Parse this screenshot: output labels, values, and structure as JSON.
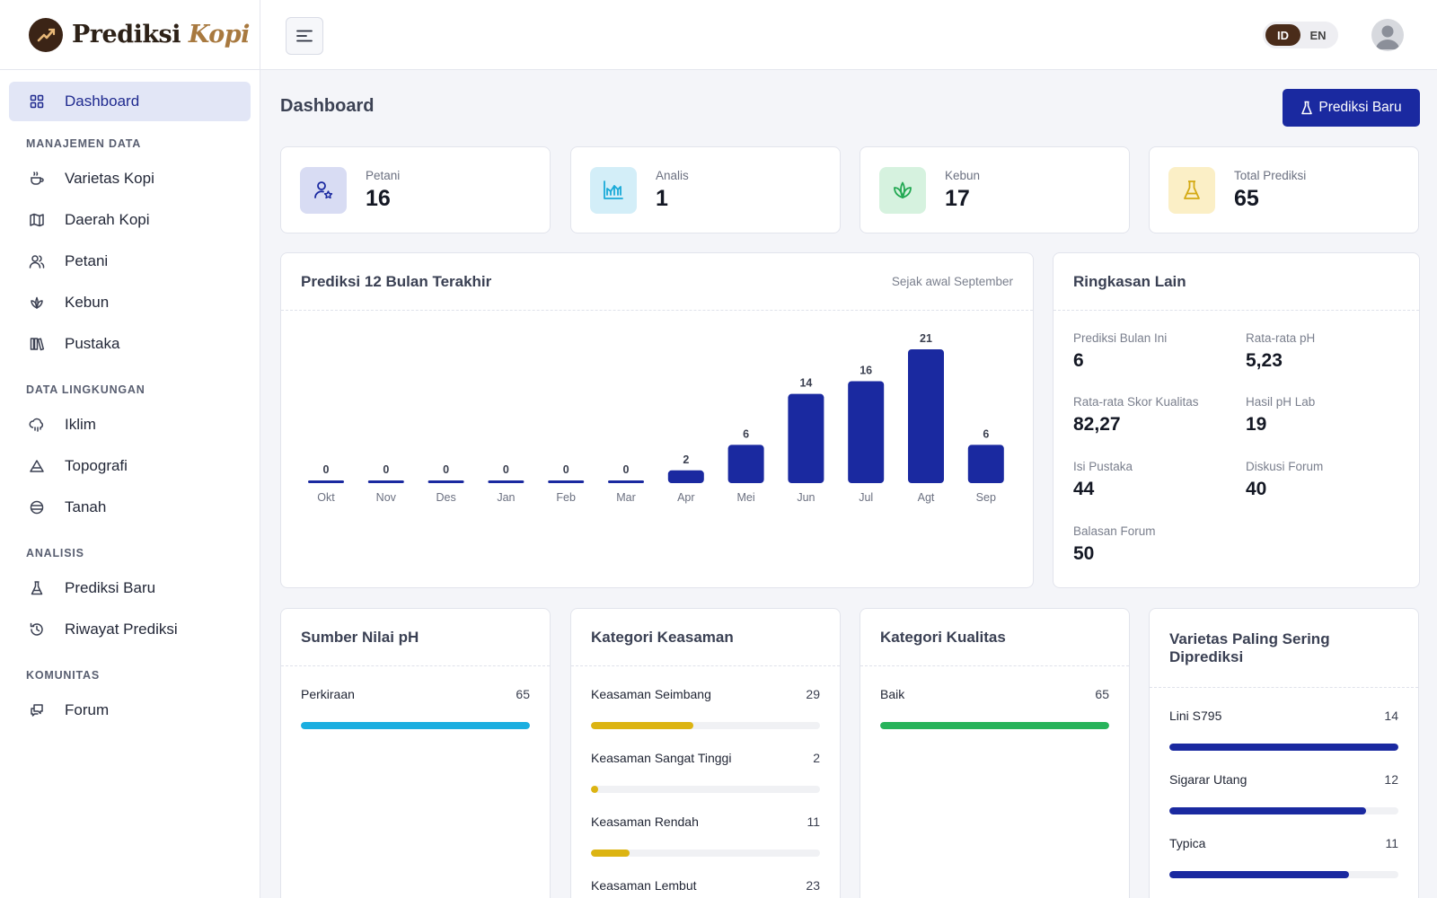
{
  "brand": {
    "name_main": "Prediksi",
    "name_accent": "Kopi"
  },
  "sidebar": {
    "dashboard": "Dashboard",
    "sections": [
      {
        "title": "MANAJEMEN DATA",
        "items": [
          "Varietas Kopi",
          "Daerah Kopi",
          "Petani",
          "Kebun",
          "Pustaka"
        ]
      },
      {
        "title": "DATA LINGKUNGAN",
        "items": [
          "Iklim",
          "Topografi",
          "Tanah"
        ]
      },
      {
        "title": "ANALISIS",
        "items": [
          "Prediksi Baru",
          "Riwayat Prediksi"
        ]
      },
      {
        "title": "KOMUNITAS",
        "items": [
          "Forum"
        ]
      }
    ]
  },
  "topbar": {
    "lang_id": "ID",
    "lang_en": "EN",
    "active_lang": "ID"
  },
  "page": {
    "title": "Dashboard",
    "new_button": "Prediksi Baru"
  },
  "stats": [
    {
      "label": "Petani",
      "value": "16",
      "icon": "user-star-icon",
      "bg": "#d8dcf3",
      "color": "#1a29a0"
    },
    {
      "label": "Analis",
      "value": "1",
      "icon": "chart-area-icon",
      "bg": "#d3eef8",
      "color": "#1aaad8"
    },
    {
      "label": "Kebun",
      "value": "17",
      "icon": "sprout-icon",
      "bg": "#d6f2df",
      "color": "#22a852"
    },
    {
      "label": "Total Prediksi",
      "value": "65",
      "icon": "flask-icon",
      "bg": "#fbefc6",
      "color": "#d4a912"
    }
  ],
  "chart": {
    "title": "Prediksi 12 Bulan Terakhir",
    "subtitle": "Sejak awal September"
  },
  "chart_data": {
    "type": "bar",
    "categories": [
      "Okt",
      "Nov",
      "Des",
      "Jan",
      "Feb",
      "Mar",
      "Apr",
      "Mei",
      "Jun",
      "Jul",
      "Agt",
      "Sep"
    ],
    "values": [
      0,
      0,
      0,
      0,
      0,
      0,
      2,
      6,
      14,
      16,
      21,
      6
    ],
    "title": "Prediksi 12 Bulan Terakhir",
    "ylim": [
      0,
      21
    ],
    "grid": false,
    "color": "#1a29a0"
  },
  "summary": {
    "title": "Ringkasan Lain",
    "items": [
      {
        "label": "Prediksi Bulan Ini",
        "value": "6"
      },
      {
        "label": "Rata-rata pH",
        "value": "5,23"
      },
      {
        "label": "Rata-rata Skor Kualitas",
        "value": "82,27"
      },
      {
        "label": "Hasil pH Lab",
        "value": "19"
      },
      {
        "label": "Isi Pustaka",
        "value": "44"
      },
      {
        "label": "Diskusi Forum",
        "value": "40"
      },
      {
        "label": "Balasan Forum",
        "value": "50"
      }
    ]
  },
  "breakdowns": [
    {
      "title": "Sumber Nilai pH",
      "color": "#1aaee0",
      "max": 65,
      "rows": [
        {
          "label": "Perkiraan",
          "count": 65
        }
      ]
    },
    {
      "title": "Kategori Keasaman",
      "color": "#dcb412",
      "max": 65,
      "rows": [
        {
          "label": "Keasaman Seimbang",
          "count": 29
        },
        {
          "label": "Keasaman Sangat Tinggi",
          "count": 2
        },
        {
          "label": "Keasaman Rendah",
          "count": 11
        },
        {
          "label": "Keasaman Lembut",
          "count": 23
        }
      ]
    },
    {
      "title": "Kategori Kualitas",
      "color": "#27b35a",
      "max": 65,
      "rows": [
        {
          "label": "Baik",
          "count": 65
        }
      ]
    },
    {
      "title": "Varietas Paling Sering Diprediksi",
      "color": "#1a29a0",
      "max": 14,
      "rows": [
        {
          "label": "Lini S795",
          "count": 14
        },
        {
          "label": "Sigarar Utang",
          "count": 12
        },
        {
          "label": "Typica",
          "count": 11
        }
      ]
    }
  ]
}
